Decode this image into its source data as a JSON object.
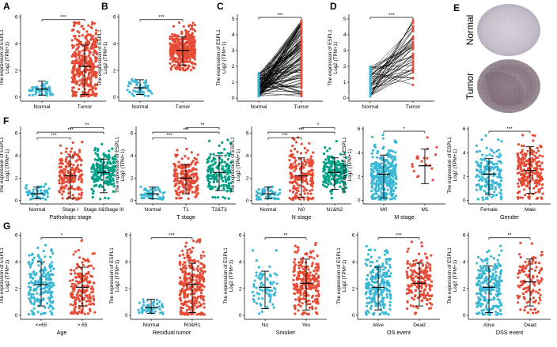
{
  "colors": {
    "normal": "#3ab7d4",
    "tumor": "#e64b35",
    "green": "#00a087",
    "line": "#000000"
  },
  "panel_labels": [
    "A",
    "B",
    "C",
    "D",
    "E",
    "F",
    "G"
  ],
  "ihc": {
    "normal_label": "Normal",
    "tumor_label": "Tumor"
  },
  "chart_data": [
    {
      "id": "A",
      "type": "scatter",
      "label": "A",
      "ylabel": "The expression of ESPL1",
      "ylabel2": "Log2 (TPM+1)",
      "yticks": [
        0,
        2,
        4,
        6
      ],
      "ylim": [
        -0.3,
        6.2
      ],
      "xlabel": "",
      "categories": [
        "Normal",
        "Tumor"
      ],
      "colors": [
        "normal",
        "tumor"
      ],
      "n": [
        50,
        380
      ],
      "median": [
        0.6,
        2.3
      ],
      "q1": [
        0.35,
        1.2
      ],
      "q3": [
        0.85,
        3.3
      ],
      "lo": [
        0.15,
        0.2
      ],
      "hi": [
        1.2,
        3.9
      ],
      "min": [
        0.1,
        0.05
      ],
      "max": [
        1.7,
        5.6
      ],
      "sig": [
        {
          "a": 0,
          "b": 1,
          "text": "***",
          "y": 5.8
        }
      ]
    },
    {
      "id": "B",
      "type": "scatter",
      "label": "B",
      "ylabel": "The expression of ESPL1",
      "ylabel2": "Log2 (TPM+1)",
      "yticks": [
        0,
        2,
        4,
        6
      ],
      "ylim": [
        -0.3,
        6.2
      ],
      "xlabel": "",
      "categories": [
        "Normal",
        "Tumor"
      ],
      "colors": [
        "normal",
        "tumor"
      ],
      "n": [
        50,
        380
      ],
      "median": [
        0.7,
        3.5
      ],
      "q1": [
        0.45,
        3.0
      ],
      "q3": [
        0.95,
        4.0
      ],
      "lo": [
        0.2,
        2.4
      ],
      "hi": [
        1.3,
        4.5
      ],
      "min": [
        0.05,
        2.0
      ],
      "max": [
        2.2,
        5.6
      ],
      "sig": [
        {
          "a": 0,
          "b": 1,
          "text": "***",
          "y": 5.8
        }
      ]
    },
    {
      "id": "C",
      "type": "paired",
      "label": "C",
      "ylabel": "The expression of ESPL1",
      "ylabel2": "Log2 (TPM+1)",
      "yticks": [
        0,
        1,
        2,
        3,
        4,
        5
      ],
      "ylim": [
        -0.2,
        5.3
      ],
      "xlabel": "",
      "categories": [
        "Normal",
        "Tumor"
      ],
      "colors": [
        "normal",
        "tumor"
      ],
      "n": [
        120,
        120
      ],
      "normal_range": [
        0.1,
        1.6
      ],
      "tumor_range": [
        0.0,
        4.9
      ],
      "sig": [
        {
          "a": 0,
          "b": 1,
          "text": "***",
          "y": 5.1
        }
      ]
    },
    {
      "id": "D",
      "type": "paired",
      "label": "D",
      "ylabel": "The expression of ESPL1",
      "ylabel2": "Log2 (TPM+1)",
      "yticks": [
        0,
        1,
        2,
        3,
        4,
        5
      ],
      "ylim": [
        -0.2,
        5.3
      ],
      "xlabel": "",
      "categories": [
        "Normal",
        "Tumor"
      ],
      "colors": [
        "normal",
        "tumor"
      ],
      "n": [
        50,
        50
      ],
      "normal_range": [
        0.1,
        2.0
      ],
      "tumor_range": [
        0.5,
        5.0
      ],
      "sig": [
        {
          "a": 0,
          "b": 1,
          "text": "***",
          "y": 5.1
        }
      ]
    },
    {
      "id": "F1",
      "type": "scatter",
      "label": "F",
      "ylabel": "The expression of ESPL1",
      "ylabel2": "Log2 (TPM+1)",
      "yticks": [
        0,
        2,
        4,
        6
      ],
      "ylim": [
        -0.3,
        6.6
      ],
      "xlabel": "Pathologic stage",
      "categories": [
        "Normal",
        "Stage I",
        "Stage II&Stage III"
      ],
      "colors": [
        "normal",
        "tumor",
        "green"
      ],
      "n": [
        50,
        180,
        190
      ],
      "median": [
        0.6,
        2.2,
        2.5
      ],
      "q1": [
        0.35,
        1.2,
        1.8
      ],
      "q3": [
        0.85,
        3.0,
        3.1
      ],
      "lo": [
        0.15,
        0.2,
        0.7
      ],
      "hi": [
        1.2,
        3.9,
        3.7
      ],
      "min": [
        0.1,
        0.05,
        0.1
      ],
      "max": [
        1.7,
        5.7,
        5.6
      ],
      "sig": [
        {
          "a": 0,
          "b": 1,
          "text": "***",
          "y": 5.6
        },
        {
          "a": 0,
          "b": 2,
          "text": "***",
          "y": 6.1
        },
        {
          "a": 1,
          "b": 2,
          "text": "**",
          "y": 6.5
        }
      ]
    },
    {
      "id": "F2",
      "type": "scatter",
      "label": "",
      "ylabel": "The expression of ESPL1",
      "ylabel2": "Log2 (TPM+1)",
      "yticks": [
        0,
        2,
        4,
        6
      ],
      "ylim": [
        -0.3,
        6.6
      ],
      "xlabel": "T stage",
      "categories": [
        "Normal",
        "T1",
        "T2&T3"
      ],
      "colors": [
        "normal",
        "tumor",
        "green"
      ],
      "n": [
        50,
        200,
        170
      ],
      "median": [
        0.6,
        2.0,
        2.5
      ],
      "q1": [
        0.35,
        1.3,
        1.8
      ],
      "q3": [
        0.85,
        2.7,
        3.2
      ],
      "lo": [
        0.15,
        0.6,
        0.9
      ],
      "hi": [
        1.2,
        3.2,
        4.0
      ],
      "min": [
        0.1,
        0.1,
        0.1
      ],
      "max": [
        1.7,
        5.5,
        5.6
      ],
      "sig": [
        {
          "a": 0,
          "b": 1,
          "text": "***",
          "y": 5.6
        },
        {
          "a": 0,
          "b": 2,
          "text": "***",
          "y": 6.1
        },
        {
          "a": 1,
          "b": 2,
          "text": "**",
          "y": 6.5
        }
      ]
    },
    {
      "id": "F3",
      "type": "scatter",
      "label": "",
      "ylabel": "The expression of ESPL1",
      "ylabel2": "Log2 (TPM+1)",
      "yticks": [
        0,
        2,
        4,
        6
      ],
      "ylim": [
        -0.3,
        6.6
      ],
      "xlabel": "N stage",
      "categories": [
        "Normal",
        "N0",
        "N1&N2"
      ],
      "colors": [
        "normal",
        "tumor",
        "green"
      ],
      "n": [
        50,
        200,
        180
      ],
      "median": [
        0.6,
        2.2,
        2.5
      ],
      "q1": [
        0.35,
        1.2,
        1.9
      ],
      "q3": [
        0.85,
        3.0,
        3.1
      ],
      "lo": [
        0.15,
        0.3,
        1.0
      ],
      "hi": [
        1.2,
        3.8,
        3.8
      ],
      "min": [
        0.1,
        0.05,
        0.2
      ],
      "max": [
        1.7,
        5.7,
        5.5
      ],
      "sig": [
        {
          "a": 0,
          "b": 1,
          "text": "***",
          "y": 5.6
        },
        {
          "a": 0,
          "b": 2,
          "text": "***",
          "y": 6.1
        },
        {
          "a": 1,
          "b": 2,
          "text": "*",
          "y": 6.5
        }
      ]
    },
    {
      "id": "F4",
      "type": "scatter",
      "label": "",
      "ylabel": "The expression of ESPL1",
      "ylabel2": "Log2 (TPM+1)",
      "yticks": [
        0,
        2,
        4,
        6
      ],
      "ylim": [
        -0.3,
        6.2
      ],
      "xlabel": "M stage",
      "categories": [
        "M0",
        "M1"
      ],
      "colors": [
        "normal",
        "tumor"
      ],
      "n": [
        330,
        20
      ],
      "median": [
        2.2,
        2.9
      ],
      "q1": [
        1.3,
        2.3
      ],
      "q3": [
        3.0,
        3.5
      ],
      "lo": [
        0.2,
        1.4
      ],
      "hi": [
        3.8,
        4.3
      ],
      "min": [
        0.05,
        0.4
      ],
      "max": [
        5.7,
        5.5
      ],
      "sig": [
        {
          "a": 0,
          "b": 1,
          "text": "*",
          "y": 5.8
        }
      ]
    },
    {
      "id": "F5",
      "type": "scatter",
      "label": "",
      "ylabel": "The expression of ESPL1",
      "ylabel2": "Log2 (TPM+1)",
      "yticks": [
        0,
        2,
        4,
        6
      ],
      "ylim": [
        -0.3,
        6.2
      ],
      "xlabel": "Gender",
      "categories": [
        "Female",
        "Male"
      ],
      "colors": [
        "normal",
        "tumor"
      ],
      "n": [
        170,
        220
      ],
      "median": [
        2.2,
        2.5
      ],
      "q1": [
        1.3,
        1.7
      ],
      "q3": [
        2.9,
        3.3
      ],
      "lo": [
        0.5,
        0.6
      ],
      "hi": [
        3.5,
        4.5
      ],
      "min": [
        0.05,
        0.1
      ],
      "max": [
        5.5,
        5.6
      ],
      "sig": [
        {
          "a": 0,
          "b": 1,
          "text": "***",
          "y": 5.8
        }
      ]
    },
    {
      "id": "G1",
      "type": "scatter",
      "label": "G",
      "ylabel": "The expression of ESPL1",
      "ylabel2": "Log2 (TPM+1)",
      "yticks": [
        0,
        2,
        4,
        6
      ],
      "ylim": [
        -0.3,
        6.2
      ],
      "xlabel": "Age",
      "categories": [
        "<=65",
        "> 65"
      ],
      "colors": [
        "normal",
        "tumor"
      ],
      "n": [
        200,
        180
      ],
      "median": [
        2.3,
        2.1
      ],
      "q1": [
        1.4,
        1.2
      ],
      "q3": [
        3.0,
        2.8
      ],
      "lo": [
        0.7,
        0.7
      ],
      "hi": [
        4.0,
        3.6
      ],
      "min": [
        0.05,
        0.1
      ],
      "max": [
        5.6,
        5.6
      ],
      "sig": [
        {
          "a": 0,
          "b": 1,
          "text": "*",
          "y": 5.8
        }
      ]
    },
    {
      "id": "G2",
      "type": "scatter",
      "label": "",
      "ylabel": "The expression of ESPL1",
      "ylabel2": "Log2 (TPM+1)",
      "yticks": [
        0,
        2,
        4,
        6
      ],
      "ylim": [
        -0.3,
        6.2
      ],
      "xlabel": "Residual tumor",
      "categories": [
        "Normal",
        "R0&R1"
      ],
      "colors": [
        "normal",
        "tumor"
      ],
      "n": [
        50,
        300
      ],
      "median": [
        0.6,
        2.3
      ],
      "q1": [
        0.35,
        1.3
      ],
      "q3": [
        0.85,
        3.3
      ],
      "lo": [
        0.15,
        0.2
      ],
      "hi": [
        1.2,
        3.9
      ],
      "min": [
        0.1,
        0.05
      ],
      "max": [
        1.7,
        5.7
      ],
      "sig": [
        {
          "a": 0,
          "b": 1,
          "text": "***",
          "y": 5.8
        }
      ]
    },
    {
      "id": "G3",
      "type": "scatter",
      "label": "",
      "ylabel": "The expression of ESPL1",
      "ylabel2": "Log2 (TPM+1)",
      "yticks": [
        0,
        2,
        4,
        6
      ],
      "ylim": [
        -0.3,
        6.2
      ],
      "xlabel": "Smoker",
      "categories": [
        "No",
        "Yes"
      ],
      "colors": [
        "normal",
        "tumor"
      ],
      "n": [
        70,
        240
      ],
      "median": [
        2.1,
        2.4
      ],
      "q1": [
        1.3,
        1.6
      ],
      "q3": [
        2.8,
        3.2
      ],
      "lo": [
        0.5,
        0.4
      ],
      "hi": [
        3.3,
        4.2
      ],
      "min": [
        0.1,
        0.05
      ],
      "max": [
        5.0,
        5.6
      ],
      "sig": [
        {
          "a": 0,
          "b": 1,
          "text": "**",
          "y": 5.8
        }
      ]
    },
    {
      "id": "G4",
      "type": "scatter",
      "label": "",
      "ylabel": "The expression of ESPL1",
      "ylabel2": "Log2 (TPM+1)",
      "yticks": [
        0,
        2,
        4,
        6
      ],
      "ylim": [
        -0.3,
        6.2
      ],
      "xlabel": "OS event",
      "categories": [
        "Alive",
        "Dead"
      ],
      "colors": [
        "normal",
        "tumor"
      ],
      "n": [
        230,
        180
      ],
      "median": [
        2.1,
        2.4
      ],
      "q1": [
        1.3,
        1.7
      ],
      "q3": [
        2.9,
        3.2
      ],
      "lo": [
        0.4,
        0.7
      ],
      "hi": [
        3.6,
        3.9
      ],
      "min": [
        0.05,
        0.1
      ],
      "max": [
        5.6,
        5.6
      ],
      "sig": [
        {
          "a": 0,
          "b": 1,
          "text": "***",
          "y": 5.8
        }
      ]
    },
    {
      "id": "G5",
      "type": "scatter",
      "label": "",
      "ylabel": "The expression of ESPL1",
      "ylabel2": "Log2 (TPM+1)",
      "yticks": [
        0,
        2,
        4,
        6
      ],
      "ylim": [
        -0.3,
        6.2
      ],
      "xlabel": "DSS event",
      "categories": [
        "Alive",
        "Dead"
      ],
      "colors": [
        "normal",
        "tumor"
      ],
      "n": [
        240,
        120
      ],
      "median": [
        2.1,
        2.5
      ],
      "q1": [
        1.3,
        1.7
      ],
      "q3": [
        2.9,
        3.3
      ],
      "lo": [
        0.2,
        0.7
      ],
      "hi": [
        3.7,
        4.2
      ],
      "min": [
        0.05,
        0.1
      ],
      "max": [
        5.6,
        5.5
      ],
      "sig": [
        {
          "a": 0,
          "b": 1,
          "text": "**",
          "y": 5.8
        }
      ]
    }
  ]
}
